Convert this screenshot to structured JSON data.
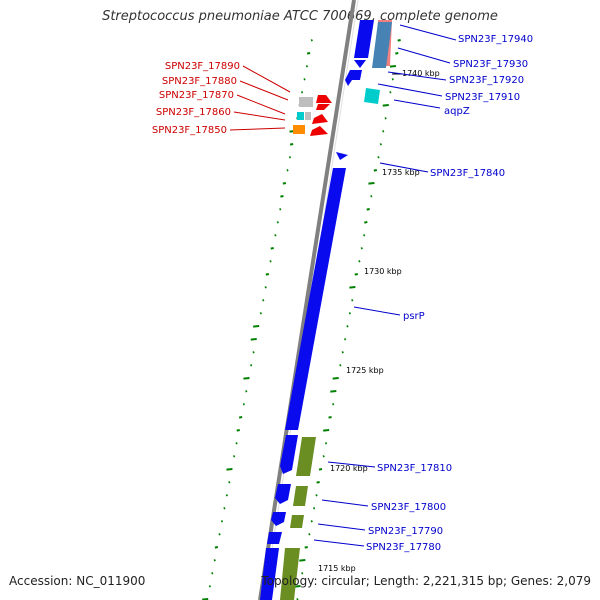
{
  "title": "Streptococcus pneumoniae ATCC 700669, complete genome",
  "footer": {
    "accession": "Accession: NC_011900",
    "topology": "Topology: circular; Length: 2,221,315 bp; Genes: 2,079"
  },
  "colors": {
    "backbone": "#808080",
    "gene_blue": "#0a0aee",
    "gene_olive": "#6b8e23",
    "gene_red": "#ee0000",
    "gene_cyan": "#00cccc",
    "gene_orange": "#ff8c00",
    "gene_gray": "#bebebe",
    "gene_pink": "#f08080",
    "gene_steel": "#4682b4",
    "label_blue": "#0000cc",
    "label_red": "#cc0000",
    "tick_green": "#008000"
  },
  "map": {
    "kbp_marks": [
      "1740 kbp",
      "1735 kbp",
      "1730 kbp",
      "1725 kbp",
      "1720 kbp",
      "1715 kbp"
    ],
    "right_labels": [
      "SPN23F_17940",
      "SPN23F_17930",
      "SPN23F_17920",
      "SPN23F_17910",
      "aqpZ",
      "SPN23F_17840",
      "psrP",
      "SPN23F_17810",
      "SPN23F_17800",
      "SPN23F_17790",
      "SPN23F_17780"
    ],
    "left_labels": [
      "SPN23F_17890",
      "SPN23F_17880",
      "SPN23F_17870",
      "SPN23F_17860",
      "SPN23F_17850"
    ]
  }
}
